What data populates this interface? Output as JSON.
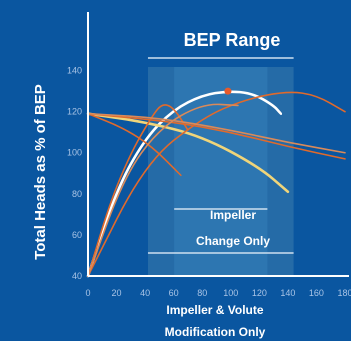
{
  "chart_data": {
    "type": "line",
    "xlabel": "",
    "ylabel": "Total Heads as % of BEP",
    "xlim": [
      0,
      180
    ],
    "ylim": [
      40,
      150
    ],
    "x_ticks": [
      "0",
      "20",
      "40",
      "60",
      "80",
      "100",
      "120",
      "140",
      "160",
      "180"
    ],
    "y_ticks": [
      "40",
      "60",
      "80",
      "100",
      "120",
      "140"
    ],
    "bep_range": [
      42,
      144
    ],
    "annotations": {
      "bep_range": "BEP Range",
      "impeller_line1": "Impeller",
      "impeller_line2": "Change Only",
      "volute_line1": "Impeller & Volute",
      "volute_line2": "Modification Only"
    },
    "bep_point": {
      "x": 98,
      "y": 130
    },
    "series": [
      {
        "color": "#ffffff",
        "kind": "rising",
        "values": [
          [
            0,
            40
          ],
          [
            20,
            82
          ],
          [
            40,
            107
          ],
          [
            60,
            121
          ],
          [
            80,
            128
          ],
          [
            98,
            130
          ],
          [
            115,
            129
          ],
          [
            130,
            123
          ],
          [
            135,
            119
          ]
        ]
      },
      {
        "color": "#f0d57a",
        "kind": "falling",
        "values": [
          [
            0,
            119
          ],
          [
            40,
            115
          ],
          [
            80,
            108
          ],
          [
            120,
            93
          ],
          [
            140,
            81
          ]
        ]
      },
      {
        "color": "#e06a2c",
        "kind": "rising",
        "values": [
          [
            0,
            40
          ],
          [
            15,
            75
          ],
          [
            30,
            100
          ],
          [
            45,
            118
          ],
          [
            52,
            124
          ],
          [
            60,
            122
          ],
          [
            70,
            111
          ]
        ]
      },
      {
        "color": "#e06a2c",
        "kind": "rising",
        "values": [
          [
            0,
            40
          ],
          [
            40,
            95
          ],
          [
            80,
            117
          ],
          [
            110,
            126
          ],
          [
            140,
            130
          ],
          [
            160,
            128
          ],
          [
            180,
            120
          ]
        ]
      },
      {
        "color": "#e06a2c",
        "kind": "falling",
        "values": [
          [
            0,
            119
          ],
          [
            25,
            112
          ],
          [
            45,
            103
          ],
          [
            65,
            89
          ]
        ]
      },
      {
        "color": "#e06a2c",
        "kind": "falling",
        "values": [
          [
            0,
            119
          ],
          [
            60,
            115
          ],
          [
            100,
            110
          ],
          [
            140,
            103
          ],
          [
            180,
            97
          ]
        ]
      },
      {
        "color": "#d98a5a",
        "kind": "falling",
        "values": [
          [
            0,
            119
          ],
          [
            50,
            117
          ],
          [
            100,
            111
          ],
          [
            140,
            105
          ],
          [
            180,
            100
          ]
        ]
      },
      {
        "color": "#d98a5a",
        "kind": "rising",
        "values": [
          [
            0,
            40
          ],
          [
            25,
            88
          ],
          [
            50,
            112
          ],
          [
            80,
            124
          ],
          [
            105,
            123
          ]
        ]
      }
    ],
    "colors": {
      "background": "#0a56a0",
      "band": "#2a6fa8",
      "band_line": "#cfe0f0",
      "axis": "#ffffff",
      "bep_point": "#e85a2a"
    }
  }
}
